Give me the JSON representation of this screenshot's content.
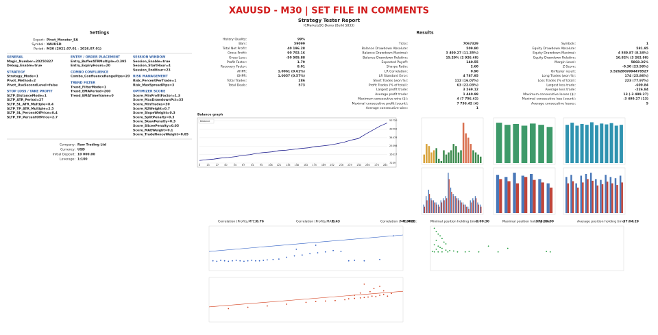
{
  "header": {
    "title": "XAUUSD - M30 | SET FILE IN COMMENTS",
    "subtitle": "Strategy Tester Report",
    "server": "ICMarketsSC-Demo (Build 5833)"
  },
  "settings": {
    "heading": "Settings",
    "info": [
      [
        "Expert:",
        "Pivot_Monster_EA"
      ],
      [
        "Symbol:",
        "XAUUSD"
      ],
      [
        "Period:",
        "M30 (2021.07.01 - 2026.07.01)"
      ]
    ],
    "inputs": [
      [
        {
          "heading": "GENERAL",
          "items": [
            "Magic_Number=20250327",
            "Debug_Enable=true"
          ]
        },
        {
          "heading": "STRATEGY",
          "items": [
            "Strategy_Mode=1",
            "Pivot_Method=2",
            "Pivot_UseSecondLevel=false"
          ]
        },
        {
          "heading": "STOP LOSS / TAKE PROFIT",
          "items": [
            "SLTP_DistanceMode=1",
            "SLTP_ATR_Period=27",
            "SLTP_SL_ATR_Multiple=8.4",
            "SLTP_TP_ATR_Multiple=2.5",
            "SLTP_SL_PercentOfPrice=0.4",
            "SLTP_TP_PercentOfPrice=2.7"
          ]
        }
      ],
      [
        {
          "heading": "ENTRY / ORDER PLACEMENT",
          "items": [
            "Entry_BufferATRMultiple=0.395",
            "Entry_ExpiryHours=20"
          ]
        },
        {
          "heading": "COMBO CONFLUENCE",
          "items": [
            "Combo_ConfluenceRangePips=20"
          ]
        },
        {
          "heading": "TREND FILTER",
          "items": [
            "Trend_FilterMode=1",
            "Trend_EMAPeriod=260",
            "Trend_EMATimeframe=0"
          ]
        }
      ],
      [
        {
          "heading": "SESSION WINDOW",
          "items": [
            "Session_Enable=true",
            "Session_StartHour=4",
            "Session_EndHour=23"
          ]
        },
        {
          "heading": "RISK MANAGEMENT",
          "items": [
            "Risk_PercentPerTrade=1",
            "Risk_MaxSpreadPips=3"
          ]
        },
        {
          "heading": "OPTIMIZER SCORE",
          "items": [
            "Score_MinProfitFactor=1.3",
            "Score_MaxDrawdownPct=35",
            "Score_MinTrades=30",
            "Score_R2Weight=0.7",
            "Score_SlopeWeight=0.3",
            "Score_SplitPenalty=0.3",
            "Score_SkewPenalty=0.3",
            "Score_SliceePenalty=0.05",
            "Score_MAEWeight=0.1",
            "Score_TradeNonceWeight=0.05"
          ]
        }
      ]
    ],
    "account": [
      [
        "Company:",
        "Raw Trading Ltd"
      ],
      [
        "Currency:",
        "USD"
      ],
      [
        "Initial Deposit:",
        "10 000.00"
      ],
      [
        "Leverage:",
        "1:100"
      ]
    ]
  },
  "results": {
    "heading": "Results",
    "columns": [
      [
        [
          "History Quality:",
          "99%"
        ],
        [
          "Bars:",
          "59099"
        ],
        [
          "Total Net Profit:",
          "40 196.28"
        ],
        [
          "Gross Profit:",
          "90 702.16"
        ],
        [
          "Gross Loss:",
          "-50 505.88"
        ],
        [
          "Profit Factor:",
          "1.79"
        ],
        [
          "Recovery Factor:",
          "8.01"
        ],
        [
          "AHPR:",
          "1.0061 (0.61%)"
        ],
        [
          "GHPR:",
          "1.0057 (0.57%)"
        ],
        [
          "Total Trades:",
          "286"
        ],
        [
          "Total Deals:",
          "573"
        ]
      ],
      [
        [
          "Ticks:",
          "7067329"
        ],
        [
          "Balance Drawdown Absolute:",
          "509.80"
        ],
        [
          "Balance Drawdown Maximal:",
          "3 499.27 (11.35%)"
        ],
        [
          "Balance Drawdown Relative:",
          "15.29% (2 926.48)"
        ],
        [
          "Expected Payoff:",
          "140.55"
        ],
        [
          "Sharpe Ratio:",
          "2.60"
        ],
        [
          "LR Correlation:",
          "0.90"
        ],
        [
          "LR Standard Error:",
          "4 787.95"
        ],
        [
          "Short Trades (won %):",
          "112 (16.07%)"
        ],
        [
          "Profit Trades (% of total):",
          "63 (22.03%)"
        ],
        [
          "Largest profit trade:",
          "3 269.12"
        ],
        [
          "Average profit trade:",
          "1 440.99"
        ],
        [
          "Maximum consecutive wins ($):",
          "4 (7 756.42)"
        ],
        [
          "Maximal consecutive profit (count):",
          "7 756.42 (4)"
        ],
        [
          "Average consecutive wins:",
          "1"
        ]
      ],
      [
        [
          "Symbols:",
          "1"
        ],
        [
          "Equity Drawdown Absolute:",
          "581.95"
        ],
        [
          "Equity Drawdown Maximal:",
          "4 589.87 (8.34%)"
        ],
        [
          "Equity Drawdown Relative:",
          "16.82% (3 262.98)"
        ],
        [
          "Margin Level:",
          "5868.36%"
        ],
        [
          "Z-Score:",
          "-0.30 (23.58%)"
        ],
        [
          "OnTester result:",
          "3.5262869994478527"
        ],
        [
          "Long Trades (won %):",
          "174 (25.86%)"
        ],
        [
          "Loss Trades (% of total):",
          "223 (77.97%)"
        ],
        [
          "Largest loss trade:",
          "-609.84"
        ],
        [
          "Average loss trade:",
          "-226.84"
        ],
        [
          "Maximum consecutive losses ($):",
          "13 (-3 499.27)"
        ],
        [
          "Maximal consecutive loss (count):",
          "-3 499.27 (13)"
        ],
        [
          "Average consecutive losses:",
          "5"
        ]
      ]
    ]
  },
  "balance_chart": {
    "type": "line",
    "title": "Balance graph",
    "legend": "Balance",
    "color": "#1a1a8c",
    "x": [
      0,
      11,
      22,
      33,
      44,
      55,
      66,
      77,
      88,
      99,
      110,
      121,
      132,
      143,
      154,
      165,
      176,
      187,
      198,
      209,
      220,
      231,
      242,
      253,
      264,
      275,
      286
    ],
    "values": [
      10000,
      10800,
      11500,
      12600,
      13200,
      14100,
      15500,
      16200,
      17800,
      18500,
      19200,
      20500,
      21000,
      21900,
      22800,
      23500,
      24800,
      25600,
      26500,
      27900,
      29500,
      31800,
      33500,
      38200,
      42500,
      46800,
      50196
    ],
    "xlim": [
      0,
      286
    ],
    "xticks": [
      0,
      13,
      27,
      40,
      54,
      67,
      81,
      94,
      108,
      121,
      135,
      148,
      162,
      175,
      189,
      202,
      216,
      229,
      243,
      256,
      270,
      283
    ],
    "ylim": [
      7239,
      52720
    ],
    "yticks": [
      7239,
      16317,
      25398,
      34478,
      43592,
      52720
    ]
  },
  "bar_charts": [
    {
      "type": "bar",
      "ylim": [
        0,
        100
      ],
      "series": [
        {
          "values": [
            20,
            45,
            40,
            25,
            30,
            35,
            10,
            5,
            30,
            20,
            25,
            30,
            45,
            40,
            25,
            30,
            95,
            70,
            60,
            45,
            30,
            25,
            20,
            15
          ],
          "colors": [
            "#d8a23a",
            "#d8a23a",
            "#d8a23a",
            "#d8a23a",
            "#d8a23a",
            "#3c8a4e",
            "#3c8a4e",
            "#3c8a4e",
            "#3c8a4e",
            "#3c8a4e",
            "#3c8a4e",
            "#3c8a4e",
            "#3c8a4e",
            "#3c8a4e",
            "#3c8a4e",
            "#3c8a4e",
            "#d9704f",
            "#d9704f",
            "#d9704f",
            "#d9704f",
            "#3c8a4e",
            "#3c8a4e",
            "#3c8a4e",
            "#3c8a4e"
          ]
        }
      ]
    },
    {
      "type": "bar",
      "ylim": [
        0,
        100
      ],
      "series": [
        {
          "color": "#3e9a6a",
          "values": [
            95,
            90,
            92,
            88,
            93,
            90,
            85
          ]
        }
      ]
    },
    {
      "type": "bar",
      "ylim": [
        0,
        100
      ],
      "series": [
        {
          "color": "#2f93b0",
          "values": [
            90,
            95,
            88,
            92,
            90,
            96,
            89,
            93,
            91,
            94,
            88,
            90
          ]
        }
      ]
    },
    {
      "type": "bar",
      "ylim": [
        0,
        100
      ],
      "series": [
        {
          "color": "#4a78b8",
          "values": [
            20,
            40,
            55,
            35,
            30,
            25,
            20,
            30,
            35,
            40,
            95,
            60,
            45,
            40,
            35,
            30,
            25,
            20,
            15,
            30,
            35,
            40,
            25,
            20
          ]
        },
        {
          "color": "#c0453a",
          "values": [
            15,
            30,
            45,
            30,
            25,
            20,
            15,
            25,
            30,
            35,
            80,
            50,
            40,
            35,
            30,
            25,
            20,
            15,
            10,
            25,
            30,
            35,
            20,
            15
          ]
        }
      ]
    },
    {
      "type": "bar",
      "ylim": [
        0,
        100
      ],
      "series": [
        {
          "color": "#4a78b8",
          "values": [
            90,
            85,
            95,
            88,
            92,
            80,
            70
          ]
        },
        {
          "color": "#c0453a",
          "values": [
            80,
            75,
            70,
            85,
            78,
            72,
            60
          ]
        }
      ]
    },
    {
      "type": "bar",
      "ylim": [
        0,
        100
      ],
      "series": [
        {
          "color": "#4a78b8",
          "values": [
            85,
            90,
            70,
            88,
            92,
            95,
            80,
            78,
            90,
            85,
            82,
            88
          ]
        },
        {
          "color": "#c0453a",
          "values": [
            70,
            75,
            60,
            72,
            80,
            76,
            65,
            68,
            74,
            70,
            66,
            72
          ]
        }
      ]
    }
  ],
  "correlation": [
    [
      "Correlation (Profits,MFE):",
      "0.76"
    ],
    [
      "Correlation (Profits,MAE):",
      "0.43"
    ],
    [
      "Correlation (MFE,MAE):",
      "-0.0028"
    ]
  ],
  "holding": [
    [
      "Minimal position holding time:",
      "0:00:30"
    ],
    [
      "Maximal position holding time:",
      "578:39:00"
    ],
    [
      "Average position holding time:",
      "37:04:29"
    ]
  ],
  "scatters": [
    {
      "type": "scatter",
      "color": "#2f5fc4",
      "xlim": [
        0,
        100
      ],
      "ylim": [
        0,
        100
      ],
      "trend": [
        43,
        80
      ],
      "points": [
        [
          2,
          22
        ],
        [
          4,
          21
        ],
        [
          6,
          23
        ],
        [
          8,
          22
        ],
        [
          10,
          21
        ],
        [
          12,
          22
        ],
        [
          14,
          23
        ],
        [
          16,
          22
        ],
        [
          18,
          21
        ],
        [
          20,
          22
        ],
        [
          22,
          23
        ],
        [
          24,
          22
        ],
        [
          26,
          22
        ],
        [
          28,
          23
        ],
        [
          30,
          24
        ],
        [
          33,
          25
        ],
        [
          36,
          26
        ],
        [
          40,
          30
        ],
        [
          44,
          33
        ],
        [
          48,
          35
        ],
        [
          52,
          38
        ],
        [
          56,
          40
        ],
        [
          60,
          42
        ],
        [
          64,
          45
        ],
        [
          68,
          43
        ],
        [
          72,
          22
        ],
        [
          75,
          23
        ],
        [
          80,
          22
        ],
        [
          88,
          25
        ],
        [
          95,
          78
        ],
        [
          55,
          57
        ],
        [
          45,
          48
        ]
      ]
    },
    {
      "type": "scatter",
      "color": "#d4401e",
      "xlim": [
        0,
        100
      ],
      "ylim": [
        0,
        100
      ],
      "trend": [
        34,
        69
      ],
      "points": [
        [
          10,
          30
        ],
        [
          20,
          33
        ],
        [
          30,
          36
        ],
        [
          40,
          40
        ],
        [
          50,
          44
        ],
        [
          55,
          46
        ],
        [
          60,
          47
        ],
        [
          65,
          48
        ],
        [
          70,
          50
        ],
        [
          72,
          52
        ],
        [
          75,
          53
        ],
        [
          78,
          54
        ],
        [
          80,
          55
        ],
        [
          82,
          56
        ],
        [
          84,
          58
        ],
        [
          86,
          57
        ],
        [
          88,
          60
        ],
        [
          90,
          62
        ],
        [
          92,
          58
        ],
        [
          85,
          75
        ],
        [
          80,
          85
        ],
        [
          88,
          80
        ],
        [
          90,
          70
        ],
        [
          78,
          65
        ],
        [
          83,
          68
        ],
        [
          75,
          60
        ],
        [
          94,
          64
        ]
      ]
    },
    {
      "type": "scatter",
      "color": "#1f9a3a",
      "xlim": [
        0,
        100
      ],
      "ylim": [
        0,
        100
      ],
      "points": [
        [
          2,
          95
        ],
        [
          3,
          88
        ],
        [
          4,
          82
        ],
        [
          5,
          78
        ],
        [
          6,
          72
        ],
        [
          3,
          68
        ],
        [
          7,
          64
        ],
        [
          8,
          60
        ],
        [
          2,
          58
        ],
        [
          4,
          55
        ],
        [
          5,
          52
        ],
        [
          6,
          50
        ],
        [
          3,
          48
        ],
        [
          8,
          46
        ],
        [
          10,
          45
        ],
        [
          12,
          44
        ],
        [
          1,
          43
        ],
        [
          2,
          42
        ],
        [
          4,
          42
        ],
        [
          6,
          42
        ],
        [
          9,
          42
        ],
        [
          14,
          42
        ],
        [
          18,
          42
        ],
        [
          20,
          43
        ],
        [
          25,
          42
        ],
        [
          35,
          42
        ],
        [
          60,
          43
        ],
        [
          62,
          42
        ],
        [
          30,
          55
        ],
        [
          40,
          50
        ]
      ]
    }
  ]
}
